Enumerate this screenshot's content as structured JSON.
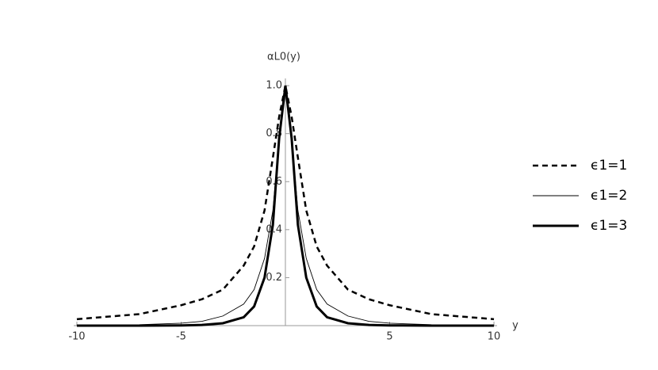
{
  "chart_data": {
    "type": "line",
    "xlabel": "y",
    "ylabel": "αL0(y)",
    "x": [
      -10,
      -7,
      -5,
      -4,
      -3,
      -2,
      -1.5,
      -1,
      -0.6,
      -0.3,
      0,
      0.3,
      0.6,
      1,
      1.5,
      2,
      3,
      4,
      5,
      7,
      10
    ],
    "series": [
      {
        "name": "ϵ1=1",
        "color": "#000000",
        "style": "dashed",
        "values": [
          0.027,
          0.048,
          0.085,
          0.11,
          0.15,
          0.25,
          0.33,
          0.48,
          0.7,
          0.87,
          1,
          0.87,
          0.7,
          0.48,
          0.33,
          0.25,
          0.15,
          0.11,
          0.085,
          0.048,
          0.027
        ]
      },
      {
        "name": "ϵ1=2",
        "color": "#000000",
        "style": "thin",
        "values": [
          0.002,
          0.004,
          0.01,
          0.018,
          0.04,
          0.09,
          0.15,
          0.28,
          0.48,
          0.78,
          1,
          0.78,
          0.48,
          0.28,
          0.15,
          0.09,
          0.04,
          0.018,
          0.01,
          0.004,
          0.002
        ]
      },
      {
        "name": "ϵ1=3",
        "color": "#000000",
        "style": "thick",
        "values": [
          0,
          0,
          0.001,
          0.003,
          0.01,
          0.035,
          0.08,
          0.2,
          0.42,
          0.78,
          1,
          0.78,
          0.42,
          0.2,
          0.08,
          0.035,
          0.01,
          0.003,
          0.001,
          0,
          0
        ]
      }
    ],
    "xlim": [
      -10.15,
      10.15
    ],
    "ylim": [
      0,
      1.03
    ],
    "xticks": [
      -10,
      -5,
      5,
      10
    ],
    "yticks": [
      0.2,
      0.4,
      0.6,
      0.8,
      {
        "value": 1,
        "label": "1.0"
      }
    ],
    "legend": "right"
  }
}
